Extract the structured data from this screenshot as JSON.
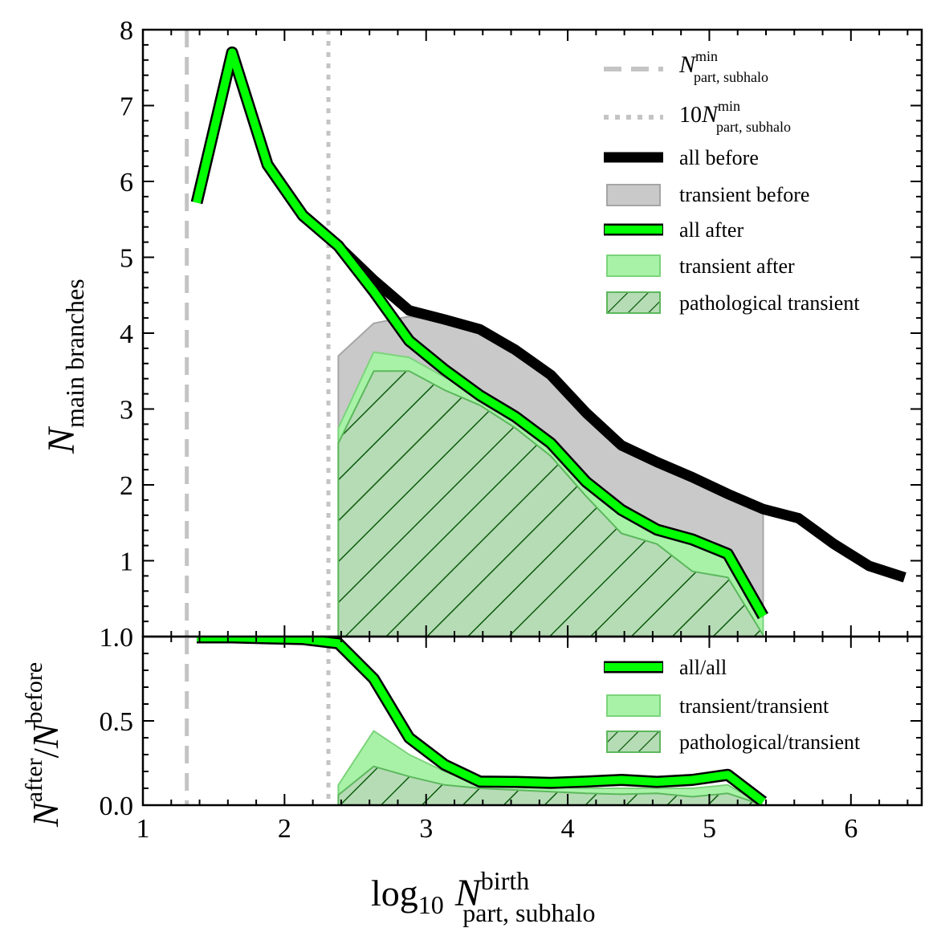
{
  "chart_data": [
    {
      "type": "line",
      "panel": "top",
      "xlabel": "log10 N^birth_part, subhalo",
      "ylabel": "N_main branches",
      "xlim": [
        1,
        6.5
      ],
      "ylim": [
        0,
        8
      ],
      "x_ticks": [
        "1",
        "2",
        "3",
        "4",
        "5",
        "6"
      ],
      "y_ticks": [
        "1",
        "2",
        "3",
        "4",
        "5",
        "6",
        "7",
        "8"
      ],
      "vlines": [
        {
          "name": "N^min_part,subhalo",
          "x": 1.31,
          "style": "dashed"
        },
        {
          "name": "10 N^min_part,subhalo",
          "x": 2.31,
          "style": "dotted"
        }
      ],
      "series": [
        {
          "name": "all before",
          "style": "line",
          "color": "#000000",
          "x": [
            2.13,
            2.38,
            2.63,
            2.88,
            3.13,
            3.38,
            3.63,
            3.88,
            4.13,
            4.38,
            4.63,
            4.88,
            5.13,
            5.38,
            5.63,
            5.88,
            6.13,
            6.38
          ],
          "y": [
            5.55,
            5.15,
            4.7,
            4.3,
            4.18,
            4.05,
            3.78,
            3.45,
            2.95,
            2.52,
            2.3,
            2.1,
            1.88,
            1.68,
            1.56,
            1.22,
            0.93,
            0.78
          ]
        },
        {
          "name": "transient before",
          "style": "fill",
          "color": "#c9c9c9",
          "x": [
            2.38,
            2.63,
            2.88,
            3.13,
            3.38,
            3.63,
            3.88,
            4.13,
            4.38,
            4.63,
            4.88,
            5.13,
            5.38
          ],
          "y": [
            3.7,
            4.13,
            4.22,
            4.15,
            4.02,
            3.78,
            3.45,
            2.95,
            2.52,
            2.3,
            2.1,
            1.88,
            1.65
          ]
        },
        {
          "name": "all after",
          "style": "line",
          "color": "#00ff00",
          "x": [
            1.38,
            1.63,
            1.88,
            2.13,
            2.38,
            2.63,
            2.88,
            3.13,
            3.38,
            3.63,
            3.88,
            4.13,
            4.38,
            4.63,
            4.88,
            5.13,
            5.38
          ],
          "y": [
            5.72,
            7.7,
            6.22,
            5.55,
            5.15,
            4.55,
            3.9,
            3.52,
            3.18,
            2.9,
            2.55,
            2.04,
            1.67,
            1.41,
            1.28,
            1.09,
            0.27
          ]
        },
        {
          "name": "transient after",
          "style": "fill",
          "color": "#a8f2a8",
          "x": [
            2.38,
            2.63,
            2.88,
            3.13,
            3.38,
            3.63,
            3.88,
            4.13,
            4.38,
            4.63,
            4.88,
            5.13,
            5.38
          ],
          "y": [
            2.75,
            3.75,
            3.68,
            3.42,
            3.2,
            2.88,
            2.52,
            2.0,
            1.62,
            1.4,
            1.22,
            1.05,
            0.25
          ]
        },
        {
          "name": "pathological transient",
          "style": "hatched-fill",
          "color": "#5cb85c",
          "x": [
            2.38,
            2.63,
            2.88,
            3.13,
            3.38,
            3.63,
            3.88,
            4.13,
            4.38,
            4.63,
            4.88,
            5.13,
            5.38
          ],
          "y": [
            2.55,
            3.5,
            3.5,
            3.25,
            3.05,
            2.75,
            2.38,
            1.85,
            1.36,
            1.22,
            0.86,
            0.78,
            0.02
          ]
        }
      ],
      "legend_position": "top-right"
    },
    {
      "type": "line",
      "panel": "bottom",
      "xlabel": "log10 N^birth_part, subhalo",
      "ylabel": "N^after / N^before",
      "xlim": [
        1,
        6.5
      ],
      "ylim": [
        0,
        1
      ],
      "x_ticks": [
        "1",
        "2",
        "3",
        "4",
        "5",
        "6"
      ],
      "y_ticks": [
        "0.0",
        "0.5",
        "1.0"
      ],
      "series": [
        {
          "name": "all/all",
          "style": "line",
          "color": "#00ff00",
          "x": [
            1.38,
            1.63,
            1.88,
            2.13,
            2.38,
            2.63,
            2.88,
            3.13,
            3.38,
            3.63,
            3.88,
            4.13,
            4.38,
            4.63,
            4.88,
            5.13,
            5.38
          ],
          "y": [
            0.995,
            0.995,
            0.99,
            0.985,
            0.96,
            0.75,
            0.4,
            0.24,
            0.14,
            0.138,
            0.132,
            0.14,
            0.15,
            0.138,
            0.15,
            0.18,
            0.02
          ]
        },
        {
          "name": "transient/transient",
          "style": "fill",
          "color": "#a8f2a8",
          "x": [
            2.38,
            2.63,
            2.88,
            3.13,
            3.38,
            3.63,
            3.88,
            4.13,
            4.38,
            4.63,
            4.88,
            5.13,
            5.38
          ],
          "y": [
            0.12,
            0.44,
            0.3,
            0.2,
            0.12,
            0.11,
            0.11,
            0.1,
            0.1,
            0.1,
            0.1,
            0.12,
            0.0
          ]
        },
        {
          "name": "pathological/transient",
          "style": "hatched-fill",
          "color": "#5cb85c",
          "x": [
            2.38,
            2.63,
            2.88,
            3.13,
            3.38,
            3.63,
            3.88,
            4.13,
            4.38,
            4.63,
            4.88,
            5.13,
            5.38
          ],
          "y": [
            0.06,
            0.23,
            0.17,
            0.12,
            0.1,
            0.09,
            0.08,
            0.07,
            0.065,
            0.07,
            0.05,
            0.07,
            0.0
          ]
        }
      ],
      "legend_position": "top-right"
    }
  ],
  "text": {
    "xlabel_log": "log",
    "xlabel_sub10": "10",
    "sym_N": "N",
    "sup_birth": "birth",
    "sub_part_subhalo": "part, subhalo",
    "sub_main_branches": "main branches",
    "sup_after": "after",
    "sup_before": "before",
    "slash": "/",
    "sup_min": "min",
    "legend_10": "10"
  },
  "colors": {
    "green": "#00ff00",
    "light_green": "#a8f2a8",
    "path_green": "#5cb85c",
    "path_fill": "#b6dcb6",
    "grey_fill": "#c9c9c9",
    "grey_line": "#b8b8b8"
  }
}
